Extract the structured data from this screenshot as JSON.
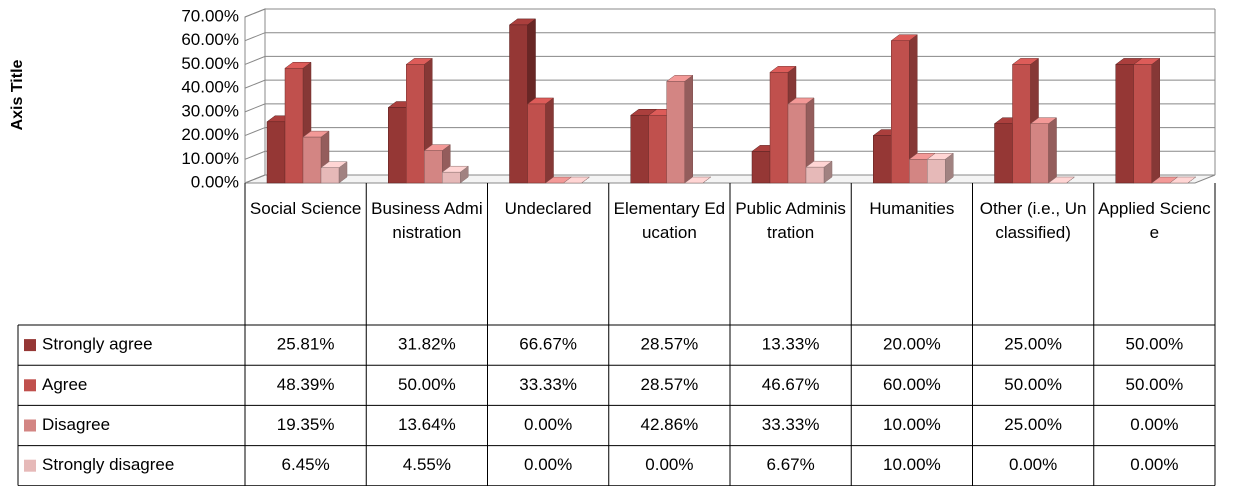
{
  "chart_data": {
    "type": "bar3d",
    "y_axis_title": "Axis Title",
    "categories": [
      "Social Science",
      "Business Administration",
      "Undeclared",
      "Elementary Education",
      "Public Administration",
      "Humanities",
      "Other (i.e., Unclassified)",
      "Applied Science"
    ],
    "series": [
      {
        "name": "Strongly agree",
        "color": "#953735",
        "values": [
          25.81,
          31.82,
          66.67,
          28.57,
          13.33,
          20.0,
          25.0,
          50.0
        ],
        "value_labels": [
          "25.81%",
          "31.82%",
          "66.67%",
          "28.57%",
          "13.33%",
          "20.00%",
          "25.00%",
          "50.00%"
        ]
      },
      {
        "name": "Agree",
        "color": "#c0504d",
        "values": [
          48.39,
          50.0,
          33.33,
          28.57,
          46.67,
          60.0,
          50.0,
          50.0
        ],
        "value_labels": [
          "48.39%",
          "50.00%",
          "33.33%",
          "28.57%",
          "46.67%",
          "60.00%",
          "50.00%",
          "50.00%"
        ]
      },
      {
        "name": "Disagree",
        "color": "#d38583",
        "values": [
          19.35,
          13.64,
          0.0,
          42.86,
          33.33,
          10.0,
          25.0,
          0.0
        ],
        "value_labels": [
          "19.35%",
          "13.64%",
          "0.00%",
          "42.86%",
          "33.33%",
          "10.00%",
          "25.00%",
          "0.00%"
        ]
      },
      {
        "name": "Strongly disagree",
        "color": "#e6b9b8",
        "values": [
          6.45,
          4.55,
          0.0,
          0.0,
          6.67,
          10.0,
          0.0,
          0.0
        ],
        "value_labels": [
          "6.45%",
          "4.55%",
          "0.00%",
          "0.00%",
          "6.67%",
          "10.00%",
          "0.00%",
          "0.00%"
        ]
      }
    ],
    "ylim": [
      0,
      70
    ],
    "yticks": [
      {
        "value": 0,
        "label": "0.00%"
      },
      {
        "value": 10,
        "label": "10.00%"
      },
      {
        "value": 20,
        "label": "20.00%"
      },
      {
        "value": 30,
        "label": "30.00%"
      },
      {
        "value": 40,
        "label": "40.00%"
      },
      {
        "value": 50,
        "label": "50.00%"
      },
      {
        "value": 60,
        "label": "60.00%"
      },
      {
        "value": 70,
        "label": "70.00%"
      }
    ],
    "grid": true
  }
}
